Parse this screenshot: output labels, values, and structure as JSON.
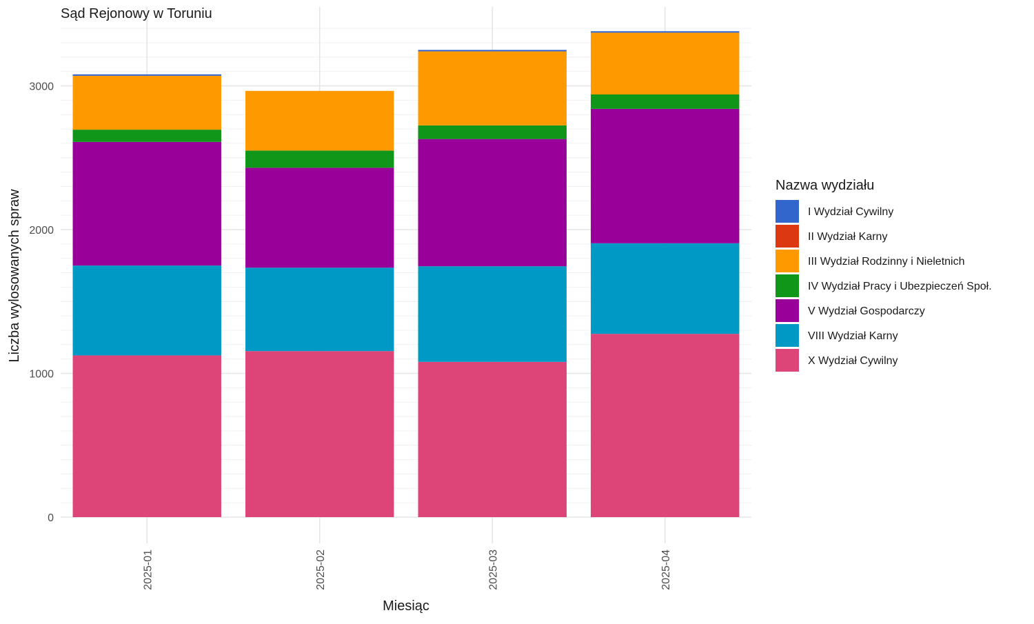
{
  "chart_data": {
    "type": "bar",
    "stacked": true,
    "title": "Sąd Rejonowy w Toruniu",
    "xlabel": "Miesiąc",
    "ylabel": "Liczba wylosowanych spraw",
    "categories": [
      "2025-01",
      "2025-02",
      "2025-03",
      "2025-04"
    ],
    "ylim": [
      0,
      3400
    ],
    "yticks": [
      0,
      1000,
      2000,
      3000
    ],
    "grid": true,
    "legend": {
      "title": "Nazwa wydziału",
      "placement": "right"
    },
    "series": [
      {
        "name": "I Wydział Cywilny",
        "color": "#3366CC",
        "values": [
          10,
          0,
          10,
          10
        ]
      },
      {
        "name": "II Wydział Karny",
        "color": "#DC3912",
        "values": [
          0,
          0,
          0,
          0
        ]
      },
      {
        "name": "III Wydział Rodzinny i Nieletnich",
        "color": "#FF9900",
        "values": [
          375,
          415,
          515,
          430
        ]
      },
      {
        "name": "IV Wydział Pracy i Ubezpieczeń Społ.",
        "color": "#109618",
        "values": [
          85,
          120,
          95,
          100
        ]
      },
      {
        "name": "V Wydział Gospodarczy",
        "color": "#990099",
        "values": [
          860,
          695,
          885,
          935
        ]
      },
      {
        "name": "VIII Wydział Karny",
        "color": "#0099C6",
        "values": [
          625,
          580,
          665,
          630
        ]
      },
      {
        "name": "X Wydział Cywilny",
        "color": "#DD4477",
        "values": [
          1125,
          1155,
          1080,
          1275
        ]
      }
    ]
  }
}
